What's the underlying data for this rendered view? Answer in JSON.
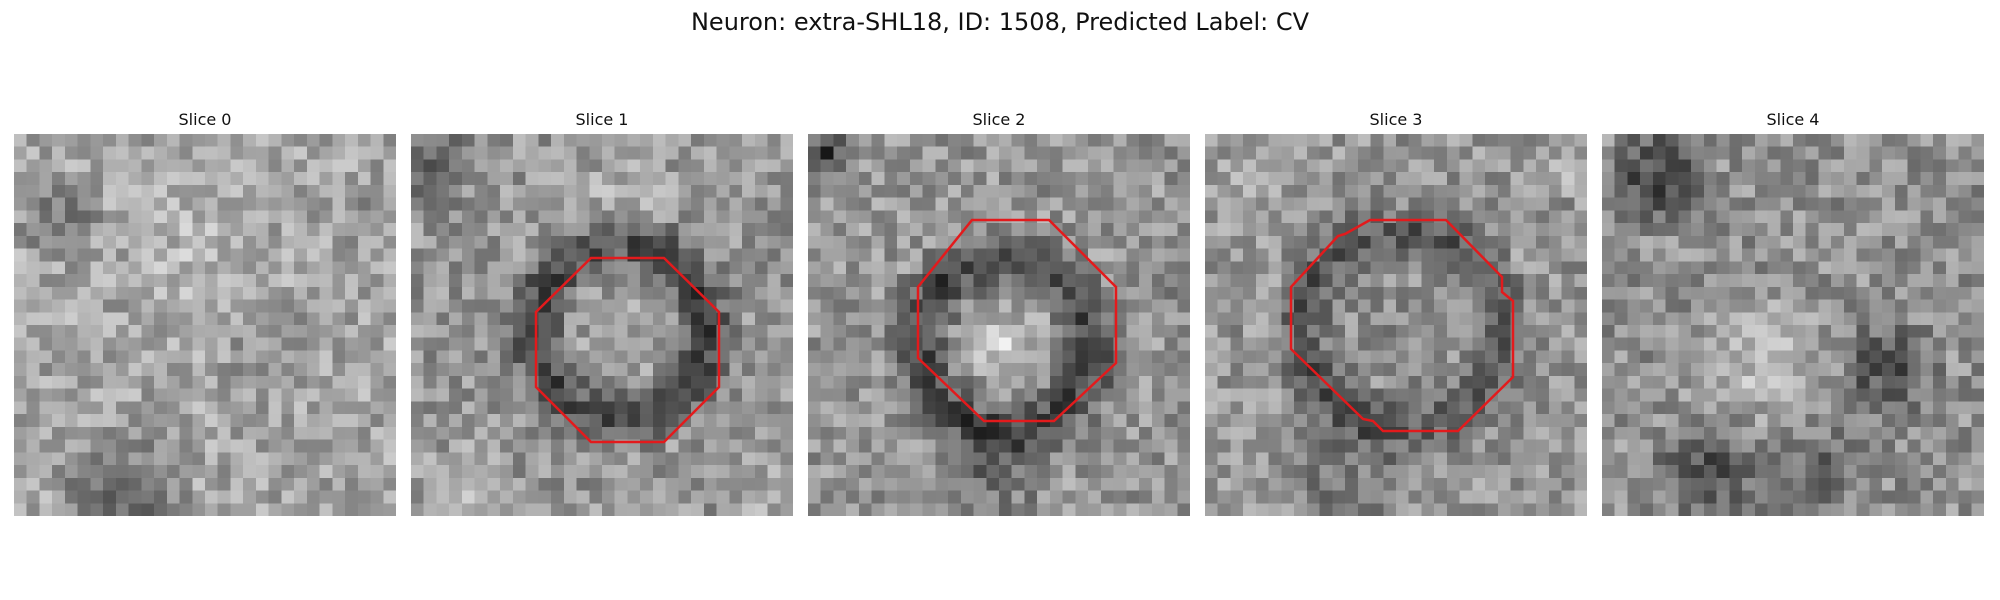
{
  "figure": {
    "title": "Neuron: extra-SHL18, ID: 1508, Predicted Label: CV"
  },
  "panels": [
    {
      "label": "Slice 0",
      "has_outline": false
    },
    {
      "label": "Slice 1",
      "has_outline": true
    },
    {
      "label": "Slice 2",
      "has_outline": true
    },
    {
      "label": "Slice 3",
      "has_outline": true
    },
    {
      "label": "Slice 4",
      "has_outline": false
    }
  ],
  "colors": {
    "outline": "#e31a1c",
    "background": "#ffffff"
  }
}
